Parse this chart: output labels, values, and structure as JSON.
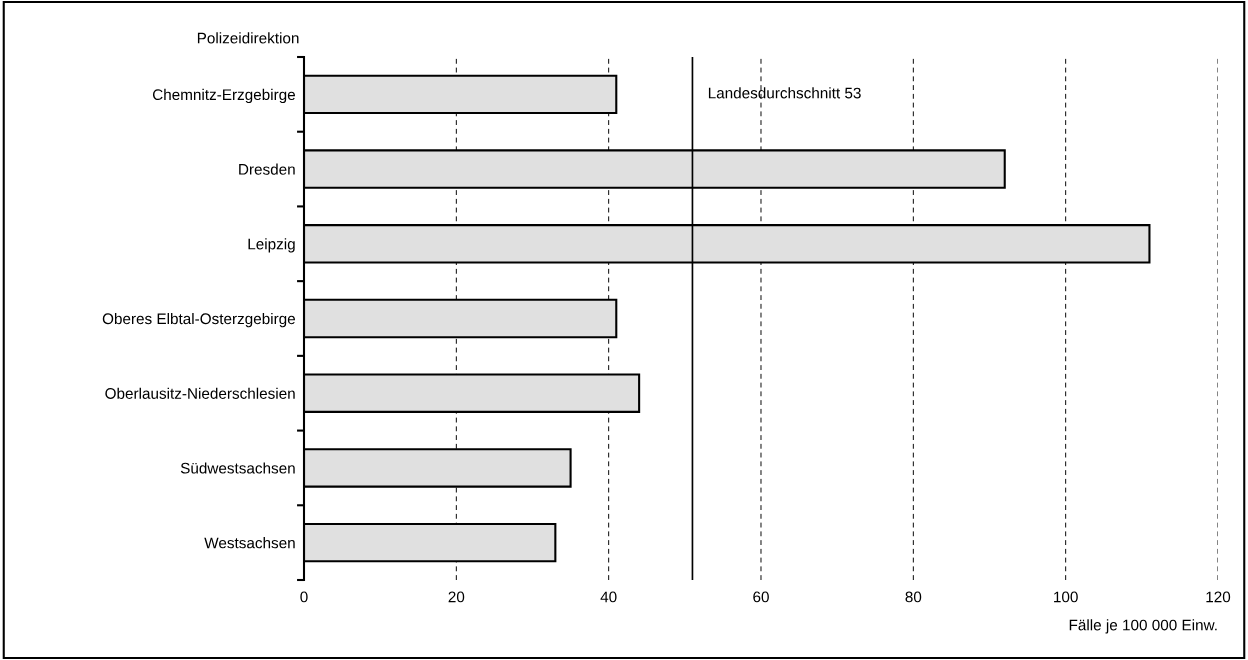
{
  "chart_data": {
    "type": "bar",
    "orientation": "horizontal",
    "ylabel": "Polizeidirektion",
    "xlabel": "Fälle je 100 000 Einw.",
    "categories": [
      "Chemnitz-Erzgebirge",
      "Dresden",
      "Leipzig",
      "Oberes Elbtal-Osterzgebirge",
      "Oberlausitz-Niederschlesien",
      "Südwestsachsen",
      "Westsachsen"
    ],
    "values": [
      41,
      92,
      111,
      41,
      44,
      35,
      33
    ],
    "color": "#e0e0e0",
    "xlim": [
      0,
      120
    ],
    "xticks": [
      0,
      20,
      40,
      60,
      80,
      100,
      120
    ],
    "grid": "x",
    "ref_lines": [
      {
        "axis": "x",
        "value": 51,
        "label": "Landesdurchschnitt 53",
        "color": "#000000",
        "line_style": "solid"
      }
    ]
  }
}
